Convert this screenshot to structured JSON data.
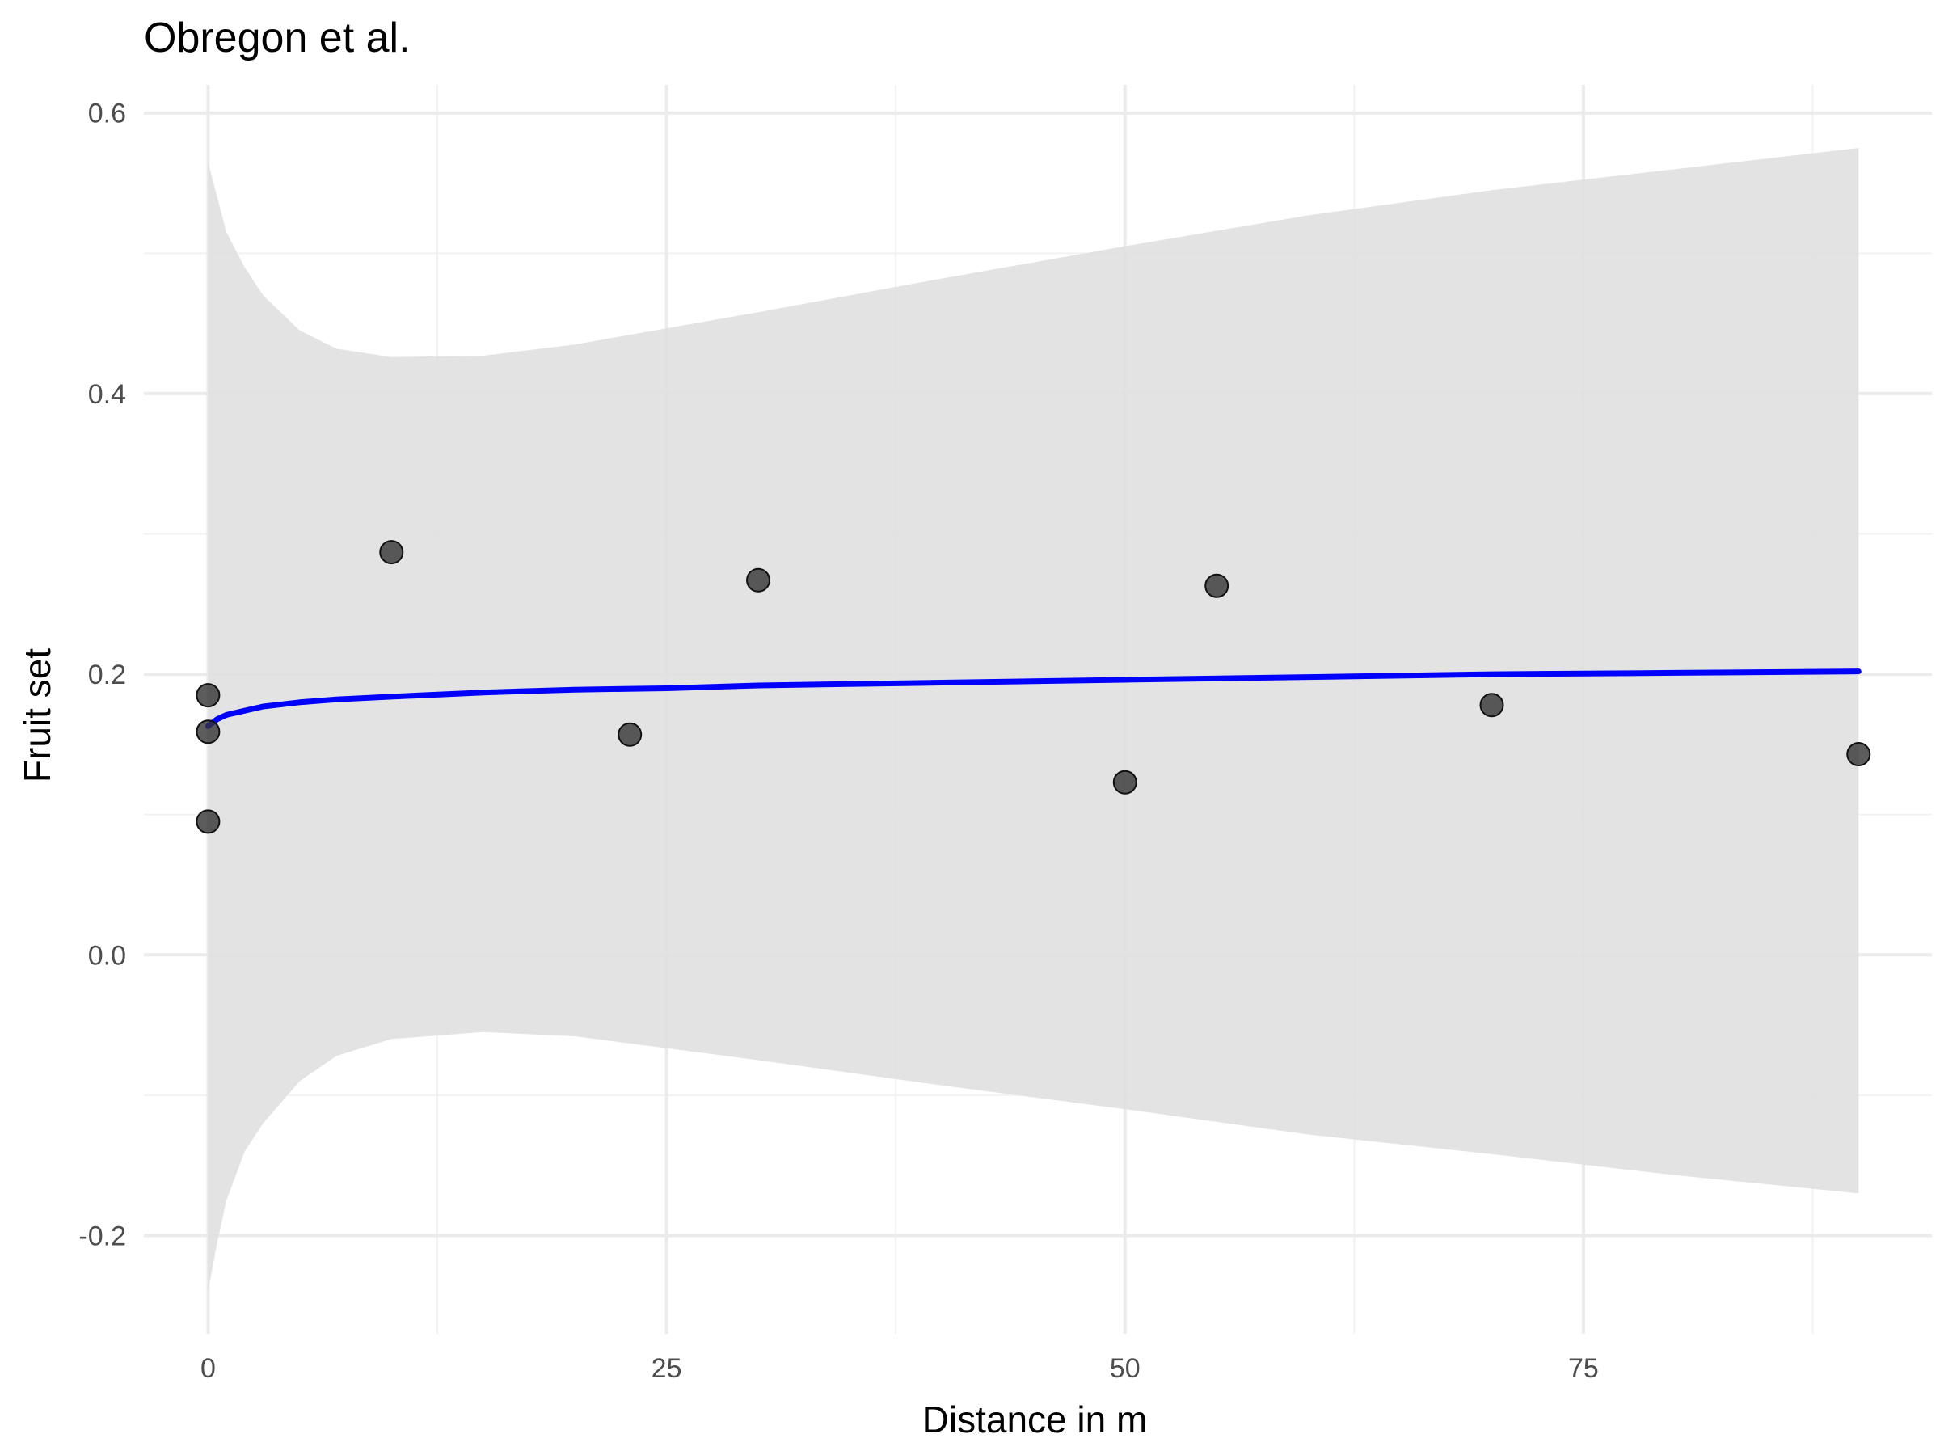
{
  "chart_data": {
    "type": "scatter",
    "title": "Obregon et al.",
    "xlabel": "Distance in m",
    "ylabel": "Fruit set",
    "xlim": [
      -3.5,
      94
    ],
    "ylim": [
      -0.27,
      0.62
    ],
    "x_ticks": [
      0,
      25,
      50,
      75
    ],
    "x_tick_labels": [
      "0",
      "25",
      "50",
      "75"
    ],
    "y_ticks": [
      -0.2,
      0.0,
      0.2,
      0.4,
      0.6
    ],
    "y_tick_labels": [
      "-0.2",
      "0.0",
      "0.2",
      "0.4",
      "0.6"
    ],
    "grid": true,
    "legend": "none",
    "points": {
      "x": [
        0,
        0,
        0,
        10,
        23,
        30,
        50,
        55,
        70,
        90
      ],
      "y": [
        0.185,
        0.159,
        0.095,
        0.287,
        0.157,
        0.267,
        0.123,
        0.263,
        0.178,
        0.143
      ]
    },
    "fit_line": {
      "x": [
        0,
        0.5,
        1,
        2,
        3,
        5,
        7,
        10,
        15,
        20,
        25,
        30,
        40,
        50,
        60,
        70,
        80,
        90
      ],
      "y": [
        0.163,
        0.168,
        0.171,
        0.174,
        0.177,
        0.18,
        0.182,
        0.184,
        0.187,
        0.189,
        0.19,
        0.192,
        0.194,
        0.196,
        0.198,
        0.2,
        0.201,
        0.202
      ]
    },
    "confidence_band": {
      "x": [
        0,
        0.5,
        1,
        2,
        3,
        5,
        7,
        10,
        15,
        20,
        30,
        40,
        50,
        60,
        70,
        80,
        90
      ],
      "upper": [
        0.565,
        0.54,
        0.515,
        0.49,
        0.47,
        0.445,
        0.432,
        0.426,
        0.427,
        0.435,
        0.458,
        0.482,
        0.505,
        0.527,
        0.545,
        0.56,
        0.575
      ],
      "lower": [
        -0.24,
        -0.205,
        -0.175,
        -0.14,
        -0.12,
        -0.09,
        -0.072,
        -0.06,
        -0.055,
        -0.058,
        -0.075,
        -0.093,
        -0.11,
        -0.128,
        -0.142,
        -0.157,
        -0.17
      ]
    },
    "colors": {
      "points": "#333333",
      "fit_line": "#0000ff",
      "band": "#e0e0e0",
      "grid_major": "#ebebeb",
      "grid_minor": "#f2f2f2"
    }
  }
}
